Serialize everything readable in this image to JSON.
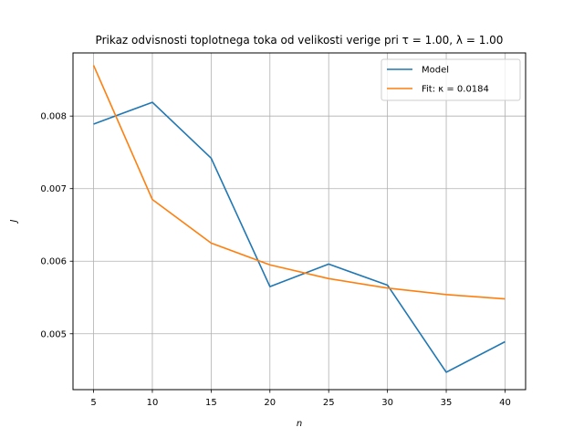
{
  "chart_data": {
    "type": "line",
    "title": "Prikaz odvisnosti toplotnega toka od velikosti verige pri τ = 1.00, λ = 1.00",
    "xlabel": "n",
    "ylabel": "J",
    "x": [
      5,
      10,
      15,
      20,
      25,
      30,
      35,
      40
    ],
    "xticks": [
      5,
      10,
      15,
      20,
      25,
      30,
      35,
      40
    ],
    "yticks": [
      0.005,
      0.006,
      0.007,
      0.008
    ],
    "ytick_labels": [
      "0.005",
      "0.006",
      "0.007",
      "0.008"
    ],
    "xlim": [
      3.25,
      41.75
    ],
    "ylim": [
      0.00423,
      0.00887
    ],
    "grid": true,
    "legend_position": "top-right",
    "series": [
      {
        "name": "Model",
        "color": "#1f77b4",
        "values": [
          0.00789,
          0.00819,
          0.00742,
          0.00565,
          0.00596,
          0.00567,
          0.00447,
          0.00489
        ]
      },
      {
        "name": "Fit: κ = 0.0184",
        "color": "#ff7f0e",
        "values": [
          0.0087,
          0.00685,
          0.00625,
          0.00595,
          0.00576,
          0.00563,
          0.00554,
          0.00548
        ]
      }
    ]
  }
}
